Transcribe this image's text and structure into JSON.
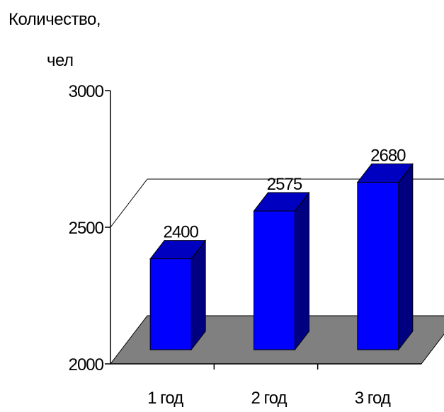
{
  "chart_data": {
    "type": "bar",
    "title": "",
    "ylabel_line1": "Количество,",
    "ylabel_line2": "чел",
    "xlabel": "",
    "categories": [
      "1 год",
      "2 год",
      "3 год"
    ],
    "values": [
      2400,
      2575,
      2680
    ],
    "data_labels": [
      "2400",
      "2575",
      "2680"
    ],
    "ylim": [
      2000,
      3000
    ],
    "yticks": [
      "2000",
      "2500",
      "3000"
    ],
    "grid": "horizontal at 2500",
    "legend": "none",
    "style": "3d-column",
    "colors": {
      "bar_front": "#0000ff",
      "bar_top": "#0000c0",
      "bar_side": "#000080",
      "floor": "#808080"
    }
  }
}
